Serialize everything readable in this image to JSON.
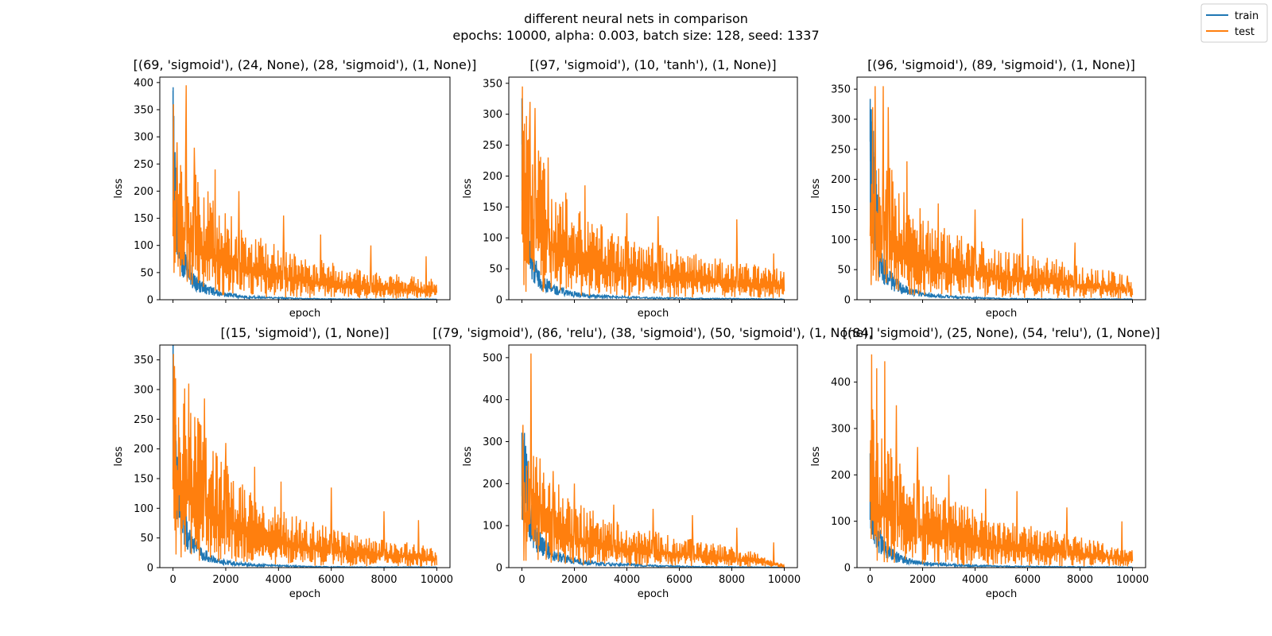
{
  "figure": {
    "title_line1": "different neural nets in comparison",
    "title_line2": "epochs: 10000, alpha: 0.003, batch size: 128, seed: 1337"
  },
  "legend": {
    "placement": "top-right",
    "entries": [
      {
        "label": "train",
        "color": "#1f77b4"
      },
      {
        "label": "test",
        "color": "#ff7f0e"
      }
    ]
  },
  "chart_data": [
    {
      "type": "line",
      "title": "[(69, 'sigmoid'), (24, None), (28, 'sigmoid'), (1, None)]",
      "xlabel": "epoch",
      "ylabel": "loss",
      "xlim": [
        -500,
        10500
      ],
      "ylim": [
        0,
        410
      ],
      "yticks": [
        0,
        50,
        100,
        150,
        200,
        250,
        300,
        350,
        400
      ],
      "xticks": [
        0,
        2000,
        4000,
        6000,
        8000,
        10000
      ],
      "show_xtick_labels": false,
      "series": [
        {
          "name": "train",
          "color": "#1f77b4",
          "x": [
            0,
            50,
            150,
            300,
            500,
            800,
            1200,
            1800,
            2500,
            3500,
            5000,
            7000,
            10000
          ],
          "y": [
            310,
            230,
            150,
            90,
            60,
            38,
            22,
            12,
            7,
            4,
            2,
            1,
            1
          ]
        },
        {
          "name": "test",
          "color": "#ff7f0e",
          "x": [
            0,
            100,
            300,
            500,
            1000,
            2000,
            3000,
            4000,
            5000,
            6000,
            7000,
            8000,
            9000,
            10000
          ],
          "y": [
            300,
            260,
            240,
            220,
            175,
            130,
            100,
            80,
            65,
            55,
            45,
            40,
            35,
            30
          ],
          "peaks": [
            [
              20,
              360
            ],
            [
              150,
              290
            ],
            [
              500,
              395
            ],
            [
              800,
              280
            ],
            [
              1600,
              240
            ],
            [
              2500,
              200
            ],
            [
              4200,
              155
            ],
            [
              5600,
              120
            ],
            [
              7500,
              100
            ],
            [
              9600,
              80
            ]
          ]
        }
      ]
    },
    {
      "type": "line",
      "title": "[(97, 'sigmoid'), (10, 'tanh'), (1, None)]",
      "xlabel": "epoch",
      "ylabel": "loss",
      "xlim": [
        -500,
        10500
      ],
      "ylim": [
        0,
        360
      ],
      "yticks": [
        0,
        50,
        100,
        150,
        200,
        250,
        300,
        350
      ],
      "xticks": [
        0,
        2000,
        4000,
        6000,
        8000,
        10000
      ],
      "show_xtick_labels": false,
      "series": [
        {
          "name": "train",
          "color": "#1f77b4",
          "x": [
            0,
            50,
            150,
            300,
            500,
            800,
            1200,
            1800,
            2500,
            3500,
            5000,
            7000,
            10000
          ],
          "y": [
            260,
            200,
            130,
            80,
            50,
            30,
            18,
            11,
            7,
            5,
            3,
            2,
            1
          ]
        },
        {
          "name": "test",
          "color": "#ff7f0e",
          "x": [
            0,
            100,
            300,
            500,
            1000,
            2000,
            3000,
            4000,
            5000,
            6000,
            7000,
            8000,
            9000,
            10000
          ],
          "y": [
            260,
            250,
            230,
            210,
            170,
            125,
            100,
            85,
            75,
            65,
            60,
            50,
            45,
            40
          ],
          "peaks": [
            [
              20,
              345
            ],
            [
              300,
              320
            ],
            [
              500,
              310
            ],
            [
              1000,
              230
            ],
            [
              2400,
              185
            ],
            [
              4000,
              140
            ],
            [
              5200,
              135
            ],
            [
              8200,
              130
            ],
            [
              9600,
              75
            ]
          ]
        }
      ]
    },
    {
      "type": "line",
      "title": "[(96, 'sigmoid'), (89, 'sigmoid'), (1, None)]",
      "xlabel": "epoch",
      "ylabel": "loss",
      "xlim": [
        -500,
        10500
      ],
      "ylim": [
        0,
        370
      ],
      "yticks": [
        0,
        50,
        100,
        150,
        200,
        250,
        300,
        350
      ],
      "xticks": [
        0,
        2000,
        4000,
        6000,
        8000,
        10000
      ],
      "show_xtick_labels": false,
      "series": [
        {
          "name": "train",
          "color": "#1f77b4",
          "x": [
            0,
            150,
            250,
            350,
            500,
            800,
            1200,
            1800,
            2500,
            3500,
            5000,
            7000,
            10000
          ],
          "y": [
            250,
            215,
            150,
            80,
            55,
            35,
            20,
            12,
            7,
            4,
            2,
            1,
            1
          ]
        },
        {
          "name": "test",
          "color": "#ff7f0e",
          "x": [
            0,
            100,
            300,
            500,
            1000,
            2000,
            3000,
            4000,
            5000,
            6000,
            7000,
            8000,
            9000,
            10000
          ],
          "y": [
            250,
            240,
            230,
            210,
            165,
            120,
            95,
            80,
            70,
            60,
            55,
            45,
            40,
            30
          ],
          "peaks": [
            [
              100,
              320
            ],
            [
              200,
              355
            ],
            [
              500,
              355
            ],
            [
              700,
              320
            ],
            [
              1400,
              230
            ],
            [
              2600,
              160
            ],
            [
              4000,
              150
            ],
            [
              5800,
              135
            ],
            [
              7800,
              95
            ],
            [
              9800,
              40
            ]
          ]
        }
      ]
    },
    {
      "type": "line",
      "title": "[(15, 'sigmoid'), (1, None)]",
      "xlabel": "epoch",
      "ylabel": "loss",
      "xlim": [
        -500,
        10500
      ],
      "ylim": [
        0,
        375
      ],
      "yticks": [
        0,
        50,
        100,
        150,
        200,
        250,
        300,
        350
      ],
      "xticks": [
        0,
        2000,
        4000,
        6000,
        8000,
        10000
      ],
      "show_xtick_labels": true,
      "series": [
        {
          "name": "train",
          "color": "#1f77b4",
          "x": [
            0,
            50,
            100,
            200,
            400,
            700,
            1000,
            1500,
            2000,
            3000,
            5000,
            7000,
            10000
          ],
          "y": [
            310,
            250,
            200,
            140,
            80,
            45,
            28,
            15,
            9,
            5,
            2,
            1,
            1
          ]
        },
        {
          "name": "test",
          "color": "#ff7f0e",
          "x": [
            0,
            100,
            300,
            500,
            1000,
            2000,
            3000,
            4000,
            5000,
            6000,
            7000,
            8000,
            9000,
            10000
          ],
          "y": [
            300,
            270,
            250,
            240,
            200,
            140,
            100,
            80,
            65,
            55,
            45,
            40,
            35,
            25
          ],
          "peaks": [
            [
              20,
              360
            ],
            [
              600,
              310
            ],
            [
              1200,
              285
            ],
            [
              2000,
              210
            ],
            [
              3100,
              170
            ],
            [
              4100,
              145
            ],
            [
              6000,
              135
            ],
            [
              8000,
              95
            ],
            [
              9300,
              80
            ]
          ]
        }
      ]
    },
    {
      "type": "line",
      "title": "[(79, 'sigmoid'), (86, 'relu'), (38, 'sigmoid'), (50, 'sigmoid'), (1, None)]",
      "xlabel": "epoch",
      "ylabel": "loss",
      "xlim": [
        -500,
        10500
      ],
      "ylim": [
        0,
        530
      ],
      "yticks": [
        0,
        100,
        200,
        300,
        400,
        500
      ],
      "xticks": [
        0,
        2000,
        4000,
        6000,
        8000,
        10000
      ],
      "show_xtick_labels": true,
      "series": [
        {
          "name": "train",
          "color": "#1f77b4",
          "x": [
            0,
            100,
            200,
            300,
            400,
            600,
            900,
            1300,
            2000,
            3000,
            5000,
            7000,
            10000
          ],
          "y": [
            250,
            250,
            225,
            140,
            110,
            75,
            50,
            30,
            18,
            10,
            5,
            2,
            1
          ]
        },
        {
          "name": "test",
          "color": "#ff7f0e",
          "x": [
            0,
            100,
            300,
            500,
            1000,
            2000,
            3000,
            4000,
            5000,
            6000,
            7000,
            8000,
            9000,
            10000
          ],
          "y": [
            250,
            240,
            230,
            215,
            180,
            130,
            100,
            80,
            70,
            60,
            50,
            40,
            30,
            5
          ],
          "peaks": [
            [
              30,
              340
            ],
            [
              350,
              510
            ],
            [
              700,
              260
            ],
            [
              1200,
              230
            ],
            [
              2000,
              200
            ],
            [
              3500,
              150
            ],
            [
              5000,
              140
            ],
            [
              6500,
              125
            ],
            [
              8200,
              95
            ],
            [
              9600,
              60
            ]
          ]
        }
      ]
    },
    {
      "type": "line",
      "title": "[(84, 'sigmoid'), (25, None), (54, 'relu'), (1, None)]",
      "xlabel": "epoch",
      "ylabel": "loss",
      "xlim": [
        -500,
        10500
      ],
      "ylim": [
        0,
        480
      ],
      "yticks": [
        0,
        100,
        200,
        300,
        400
      ],
      "xticks": [
        0,
        2000,
        4000,
        6000,
        8000,
        10000
      ],
      "show_xtick_labels": true,
      "series": [
        {
          "name": "train",
          "color": "#1f77b4",
          "x": [
            0,
            50,
            150,
            300,
            500,
            800,
            1200,
            1800,
            2500,
            3500,
            5000,
            7000,
            10000
          ],
          "y": [
            190,
            160,
            115,
            75,
            50,
            32,
            20,
            12,
            8,
            5,
            3,
            2,
            1
          ]
        },
        {
          "name": "test",
          "color": "#ff7f0e",
          "x": [
            0,
            100,
            300,
            500,
            1000,
            2000,
            3000,
            4000,
            5000,
            6000,
            7000,
            8000,
            9000,
            10000
          ],
          "y": [
            300,
            280,
            250,
            230,
            190,
            150,
            120,
            100,
            85,
            75,
            65,
            55,
            45,
            30
          ],
          "peaks": [
            [
              50,
              460
            ],
            [
              250,
              430
            ],
            [
              550,
              445
            ],
            [
              1000,
              350
            ],
            [
              1800,
              260
            ],
            [
              3000,
              200
            ],
            [
              4400,
              170
            ],
            [
              5600,
              165
            ],
            [
              7500,
              130
            ],
            [
              9600,
              100
            ]
          ]
        }
      ]
    }
  ]
}
